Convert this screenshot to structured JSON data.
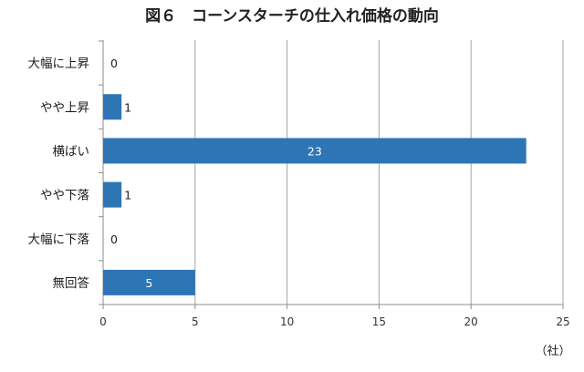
{
  "chart_data": {
    "type": "bar",
    "orientation": "horizontal",
    "title": "図６　コーンスターチの仕入れ価格の動向",
    "categories": [
      "大幅に上昇",
      "やや上昇",
      "横ばい",
      "やや下落",
      "大幅に下落",
      "無回答"
    ],
    "values": [
      0,
      1,
      23,
      1,
      0,
      5
    ],
    "xlim": [
      0,
      25
    ],
    "xticks": [
      0,
      5,
      10,
      15,
      20,
      25
    ],
    "xlabel": "（社）",
    "grid": "vertical",
    "data_labels": true,
    "bar_color": "#2E75B6"
  }
}
